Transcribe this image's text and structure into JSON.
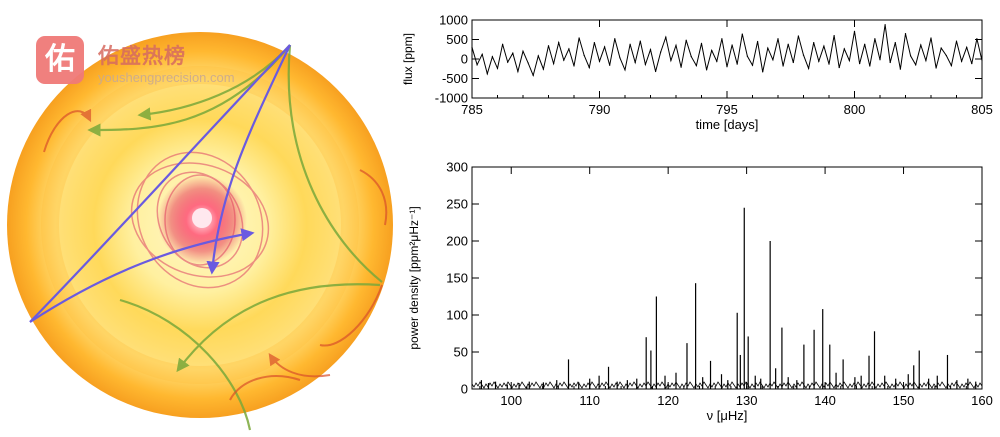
{
  "watermark": {
    "badge": "佑",
    "title": "佑盛热榜",
    "url": "youshengprecision.com"
  },
  "colors": {
    "line": "#000000",
    "ray_blue": "#6a5ae0",
    "ray_green": "#7aa83a",
    "ray_red": "#d9502a",
    "core": "#e23a52"
  },
  "chart_data": [
    {
      "type": "line",
      "title": "",
      "xlabel": "time [days]",
      "ylabel": "flux [ppm]",
      "xlim": [
        785,
        805
      ],
      "ylim": [
        -1000,
        1000
      ],
      "xticks": [
        785,
        790,
        795,
        800,
        805
      ],
      "yticks": [
        -1000,
        -500,
        0,
        500,
        1000
      ],
      "series": [
        {
          "name": "flux",
          "x": [
            785.0,
            785.2,
            785.4,
            785.6,
            785.8,
            786.0,
            786.2,
            786.4,
            786.6,
            786.8,
            787.0,
            787.2,
            787.4,
            787.6,
            787.8,
            788.0,
            788.2,
            788.4,
            788.6,
            788.8,
            789.0,
            789.2,
            789.4,
            789.6,
            789.8,
            790.0,
            790.2,
            790.4,
            790.6,
            790.8,
            791.0,
            791.2,
            791.4,
            791.6,
            791.8,
            792.0,
            792.2,
            792.4,
            792.6,
            792.8,
            793.0,
            793.2,
            793.4,
            793.6,
            793.8,
            794.0,
            794.2,
            794.4,
            794.6,
            794.8,
            795.0,
            795.2,
            795.4,
            795.6,
            795.8,
            796.0,
            796.2,
            796.4,
            796.6,
            796.8,
            797.0,
            797.2,
            797.4,
            797.6,
            797.8,
            798.0,
            798.2,
            798.4,
            798.6,
            798.8,
            799.0,
            799.2,
            799.4,
            799.6,
            799.8,
            800.0,
            800.2,
            800.4,
            800.6,
            800.8,
            801.0,
            801.2,
            801.4,
            801.6,
            801.8,
            802.0,
            802.2,
            802.4,
            802.6,
            802.8,
            803.0,
            803.2,
            803.4,
            803.6,
            803.8,
            804.0,
            804.2,
            804.4,
            804.6,
            804.8,
            805.0
          ],
          "values": [
            300,
            -150,
            120,
            -380,
            60,
            -240,
            380,
            -80,
            150,
            -320,
            200,
            -100,
            -420,
            80,
            -260,
            340,
            -120,
            420,
            -30,
            260,
            -180,
            540,
            90,
            -220,
            420,
            -60,
            310,
            -160,
            520,
            30,
            -280,
            380,
            -90,
            460,
            -140,
            240,
            -320,
            180,
            560,
            -40,
            350,
            -210,
            480,
            60,
            -170,
            400,
            -280,
            220,
            -60,
            520,
            -200,
            360,
            -130,
            640,
            70,
            -160,
            450,
            -330,
            280,
            -20,
            520,
            -180,
            380,
            -90,
            590,
            100,
            -240,
            420,
            -60,
            330,
            -130,
            600,
            -220,
            260,
            -40,
            710,
            -120,
            380,
            -180,
            520,
            -20,
            880,
            -90,
            420,
            -260,
            650,
            80,
            -150,
            360,
            -40,
            540,
            -230,
            280,
            90,
            -170,
            460,
            -60,
            300,
            -120,
            520,
            -40
          ]
        }
      ]
    },
    {
      "type": "bar",
      "title": "",
      "xlabel": "ν [μHz]",
      "ylabel": "power density [ppm²μHz⁻¹]",
      "xlim": [
        95,
        160
      ],
      "ylim": [
        0,
        300
      ],
      "xticks": [
        100,
        110,
        120,
        130,
        140,
        150,
        160
      ],
      "yticks": [
        0,
        50,
        100,
        150,
        200,
        250,
        300
      ],
      "series": [
        {
          "name": "power density",
          "x": [
            96.2,
            97.1,
            98.0,
            99.5,
            101.0,
            102.3,
            104.1,
            105.8,
            107.3,
            108.6,
            110.0,
            111.2,
            112.4,
            113.5,
            114.8,
            116.0,
            117.2,
            117.8,
            118.5,
            119.6,
            121.0,
            122.4,
            123.5,
            124.4,
            125.4,
            126.8,
            127.6,
            128.8,
            129.2,
            129.7,
            130.2,
            131.1,
            131.8,
            133.0,
            133.7,
            134.5,
            135.3,
            136.4,
            137.3,
            138.6,
            139.7,
            140.6,
            141.4,
            142.3,
            143.8,
            144.6,
            145.6,
            146.3,
            147.6,
            149.0,
            150.6,
            151.3,
            152.0,
            153.2,
            154.3,
            155.6,
            156.8,
            158.2,
            159.2
          ],
          "values": [
            12,
            8,
            10,
            6,
            8,
            10,
            9,
            12,
            40,
            9,
            14,
            18,
            30,
            10,
            12,
            14,
            70,
            52,
            125,
            18,
            22,
            62,
            143,
            16,
            38,
            20,
            12,
            103,
            46,
            245,
            71,
            18,
            14,
            200,
            28,
            83,
            16,
            12,
            60,
            80,
            108,
            60,
            22,
            40,
            16,
            18,
            45,
            78,
            18,
            14,
            20,
            32,
            52,
            14,
            18,
            46,
            12,
            14,
            10
          ]
        }
      ]
    }
  ]
}
